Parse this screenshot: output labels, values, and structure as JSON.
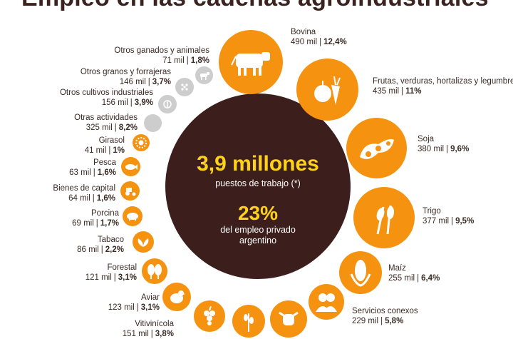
{
  "title": "Empleo en las cadenas agroindustriales",
  "center": {
    "main_value": "3,9 millones",
    "main_caption": "puestos de trabajo (*)",
    "share_value": "23%",
    "share_caption_1": "del empleo privado",
    "share_caption_2": "argentino"
  },
  "colors": {
    "accent": "#f5920f",
    "center": "#3c1f1c",
    "highlight": "#ffd21a",
    "inactive": "#cdcdcd"
  },
  "sectors": {
    "bovina": {
      "name": "Bovina",
      "jobs": "490 mil",
      "share": "12,4%",
      "icon": "cow-icon"
    },
    "frutas": {
      "name": "Frutas, verduras, hortalizas y legumbres",
      "jobs": "435 mil",
      "share": "11%",
      "icon": "fruits-icon"
    },
    "soja": {
      "name": "Soja",
      "jobs": "380 mil",
      "share": "9,6%",
      "icon": "soy-icon"
    },
    "trigo": {
      "name": "Trigo",
      "jobs": "377 mil",
      "share": "9,5%",
      "icon": "wheat-icon"
    },
    "maiz": {
      "name": "Maíz",
      "jobs": "255 mil",
      "share": "6,4%",
      "icon": "corn-icon"
    },
    "servicios": {
      "name": "Servicios conexos",
      "jobs": "229 mil",
      "share": "5,8%",
      "icon": "people-icon"
    },
    "vitivinicola": {
      "name": "Vitivinícola",
      "jobs": "151 mil",
      "share": "3,8%",
      "icon": "grapes-icon"
    },
    "aviar": {
      "name": "Aviar",
      "jobs": "123 mil",
      "share": "3,1%",
      "icon": "chicken-icon"
    },
    "forestal": {
      "name": "Forestal",
      "jobs": "121 mil",
      "share": "3,1%",
      "icon": "trees-icon"
    },
    "tabaco": {
      "name": "Tabaco",
      "jobs": "86 mil",
      "share": "2,2%",
      "icon": "leaf-icon"
    },
    "porcina": {
      "name": "Porcina",
      "jobs": "69 mil",
      "share": "1,7%",
      "icon": "pig-icon"
    },
    "bienes": {
      "name": "Bienes de capital",
      "jobs": "64 mil",
      "share": "1,6%",
      "icon": "tractor-icon"
    },
    "pesca": {
      "name": "Pesca",
      "jobs": "63 mil",
      "share": "1,6%",
      "icon": "fish-icon"
    },
    "girasol": {
      "name": "Girasol",
      "jobs": "41 mil",
      "share": "1%",
      "icon": "sunflower-icon"
    },
    "otras": {
      "name": "Otras actividades",
      "jobs": "325 mil",
      "share": "8,2%",
      "icon": ""
    },
    "cultivos": {
      "name": "Otros cultivos industriales",
      "jobs": "156 mil",
      "share": "3,9%",
      "icon": "plant-icon"
    },
    "granos": {
      "name": "Otros granos y forrajeras",
      "jobs": "146 mil",
      "share": "3,7%",
      "icon": "grains-icon"
    },
    "ganados": {
      "name": "Otros ganados y animales",
      "jobs": "71 mil",
      "share": "1,8%",
      "icon": "goat-icon"
    }
  },
  "separator": "|"
}
